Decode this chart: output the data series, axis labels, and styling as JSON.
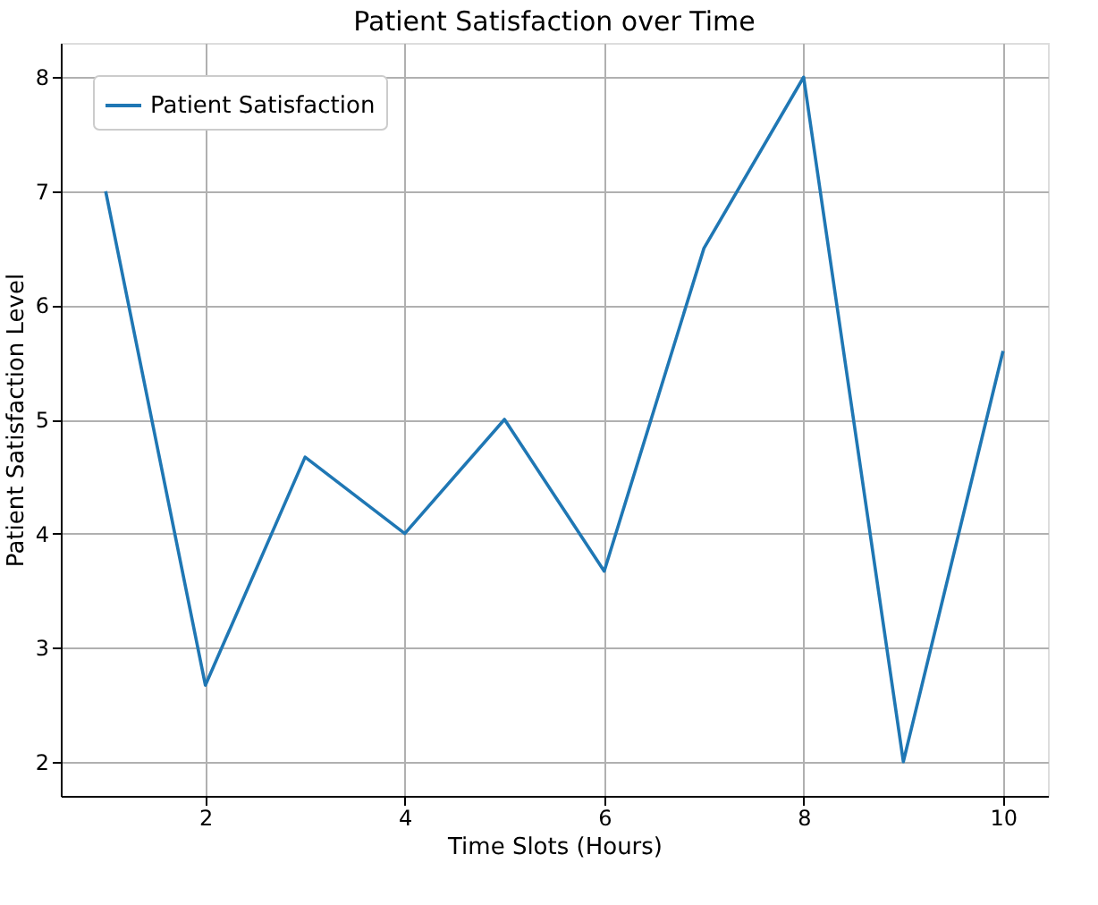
{
  "chart_data": {
    "type": "line",
    "title": "Patient Satisfaction over Time",
    "xlabel": "Time Slots (Hours)",
    "ylabel": "Patient Satisfaction Level",
    "x": [
      1,
      2,
      3,
      4,
      5,
      6,
      7,
      8,
      9,
      10
    ],
    "series": [
      {
        "name": "Patient Satisfaction",
        "color": "#1f77b4",
        "values": [
          7,
          2.67,
          4.67,
          4,
          5,
          3.67,
          6.5,
          8,
          2,
          5.6
        ]
      }
    ],
    "xlim": [
      0.55,
      10.45
    ],
    "ylim": [
      1.7,
      8.3
    ],
    "xticks": [
      2,
      4,
      6,
      8,
      10
    ],
    "yticks": [
      2,
      3,
      4,
      5,
      6,
      7,
      8
    ],
    "grid": true,
    "legend": "top left"
  }
}
